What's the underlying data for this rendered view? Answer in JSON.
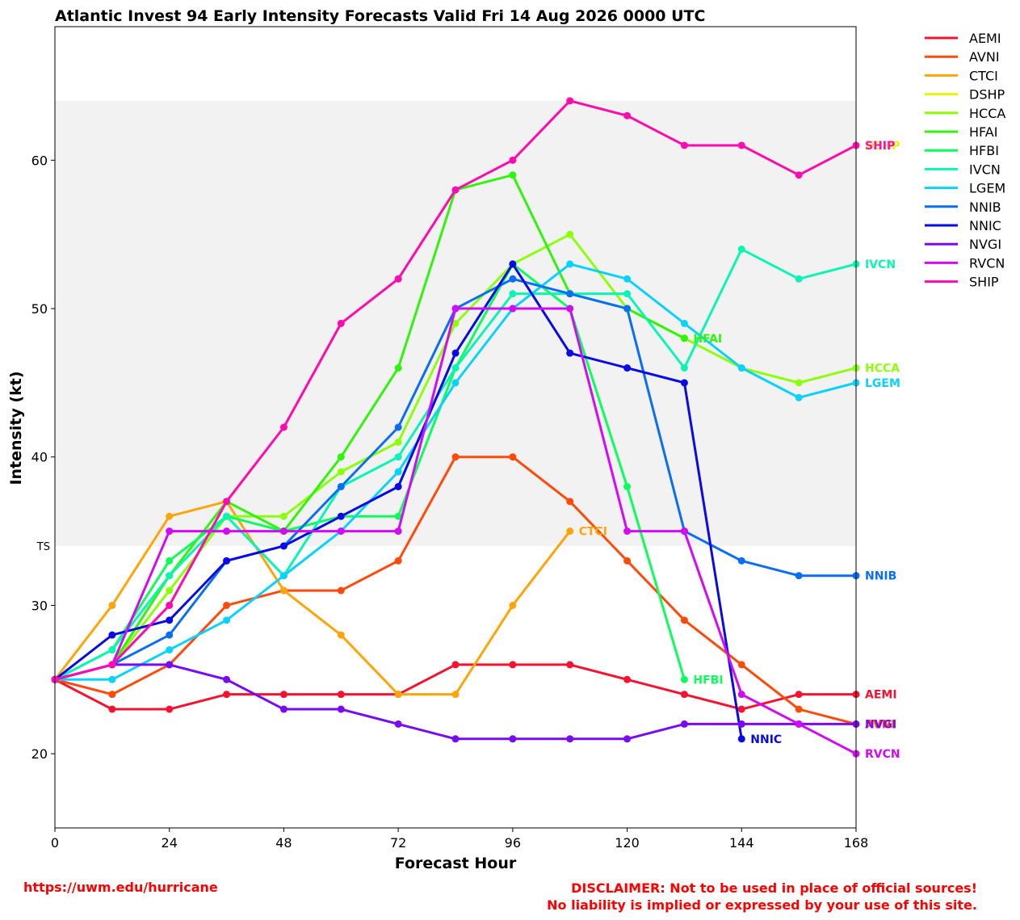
{
  "chart_data": {
    "type": "line",
    "title": "Atlantic Invest 94 Early Intensity Forecasts Valid Fri 14 Aug 2026 0000 UTC",
    "xlabel": "Forecast Hour",
    "ylabel": "Intensity (kt)",
    "xlim": [
      0,
      168
    ],
    "ylim": [
      15,
      69
    ],
    "xticks": [
      0,
      24,
      48,
      72,
      96,
      120,
      144,
      168
    ],
    "yticks": [
      20,
      30,
      40,
      50,
      60
    ],
    "band": {
      "label": "TS",
      "from": 34,
      "to": 64,
      "color": "#f2f2f2"
    },
    "legend_position": "outside-right",
    "series": [
      {
        "name": "AEMI",
        "color": "#f5132f",
        "end_label": "AEMI",
        "points": [
          [
            0,
            25
          ],
          [
            12,
            23
          ],
          [
            24,
            23
          ],
          [
            36,
            24
          ],
          [
            48,
            24
          ],
          [
            60,
            24
          ],
          [
            72,
            24
          ],
          [
            84,
            26
          ],
          [
            96,
            26
          ],
          [
            108,
            26
          ],
          [
            120,
            25
          ],
          [
            132,
            24
          ],
          [
            144,
            23
          ],
          [
            156,
            24
          ],
          [
            168,
            24
          ]
        ]
      },
      {
        "name": "AVNI",
        "color": "#ff4a0a",
        "end_label": "AVNI",
        "points": [
          [
            0,
            25
          ],
          [
            12,
            24
          ],
          [
            24,
            26
          ],
          [
            36,
            30
          ],
          [
            48,
            31
          ],
          [
            60,
            31
          ],
          [
            72,
            33
          ],
          [
            84,
            40
          ],
          [
            96,
            40
          ],
          [
            108,
            37
          ],
          [
            120,
            33
          ],
          [
            132,
            29
          ],
          [
            144,
            26
          ],
          [
            156,
            23
          ],
          [
            168,
            22
          ]
        ]
      },
      {
        "name": "CTCI",
        "color": "#ffa50a",
        "end_label": "CTCI",
        "points": [
          [
            0,
            25
          ],
          [
            12,
            30
          ],
          [
            24,
            36
          ],
          [
            36,
            37
          ],
          [
            48,
            31
          ],
          [
            60,
            28
          ],
          [
            72,
            24
          ],
          [
            84,
            24
          ],
          [
            96,
            30
          ],
          [
            108,
            35
          ]
        ]
      },
      {
        "name": "DSHP",
        "color": "#e6f50a",
        "end_label": "DSHP",
        "points": [
          [
            0,
            25
          ],
          [
            12,
            26
          ],
          [
            24,
            30
          ],
          [
            36,
            37
          ],
          [
            48,
            42
          ],
          [
            60,
            49
          ],
          [
            72,
            52
          ],
          [
            84,
            58
          ],
          [
            96,
            60
          ],
          [
            108,
            64
          ],
          [
            120,
            63
          ],
          [
            132,
            61
          ],
          [
            144,
            61
          ],
          [
            156,
            59
          ],
          [
            168,
            61
          ]
        ]
      },
      {
        "name": "HCCA",
        "color": "#8cff0a",
        "end_label": "HCCA",
        "points": [
          [
            0,
            25
          ],
          [
            12,
            26
          ],
          [
            24,
            31
          ],
          [
            36,
            36
          ],
          [
            48,
            36
          ],
          [
            60,
            39
          ],
          [
            72,
            41
          ],
          [
            84,
            49
          ],
          [
            96,
            53
          ],
          [
            108,
            55
          ],
          [
            120,
            50
          ],
          [
            132,
            48
          ],
          [
            144,
            46
          ],
          [
            156,
            45
          ],
          [
            168,
            46
          ]
        ]
      },
      {
        "name": "HFAI",
        "color": "#2ef50a",
        "end_label": "HFAI",
        "points": [
          [
            0,
            25
          ],
          [
            12,
            26
          ],
          [
            24,
            32
          ],
          [
            36,
            37
          ],
          [
            48,
            35
          ],
          [
            60,
            40
          ],
          [
            72,
            46
          ],
          [
            84,
            58
          ],
          [
            96,
            59
          ],
          [
            108,
            51
          ],
          [
            120,
            50
          ],
          [
            132,
            48
          ]
        ]
      },
      {
        "name": "HFBI",
        "color": "#0aff5a",
        "end_label": "HFBI",
        "points": [
          [
            0,
            25
          ],
          [
            12,
            27
          ],
          [
            24,
            33
          ],
          [
            36,
            36
          ],
          [
            48,
            35
          ],
          [
            60,
            36
          ],
          [
            72,
            36
          ],
          [
            84,
            46
          ],
          [
            96,
            53
          ],
          [
            108,
            50
          ],
          [
            120,
            38
          ],
          [
            132,
            25
          ]
        ]
      },
      {
        "name": "IVCN",
        "color": "#0af5b4",
        "end_label": "IVCN",
        "points": [
          [
            0,
            25
          ],
          [
            12,
            27
          ],
          [
            24,
            32
          ],
          [
            36,
            36
          ],
          [
            48,
            32
          ],
          [
            60,
            38
          ],
          [
            72,
            40
          ],
          [
            84,
            46
          ],
          [
            96,
            51
          ],
          [
            108,
            51
          ],
          [
            120,
            51
          ],
          [
            132,
            46
          ],
          [
            144,
            54
          ],
          [
            156,
            52
          ],
          [
            168,
            53
          ]
        ]
      },
      {
        "name": "LGEM",
        "color": "#0ad2ff",
        "end_label": "LGEM",
        "points": [
          [
            0,
            25
          ],
          [
            12,
            25
          ],
          [
            24,
            27
          ],
          [
            36,
            29
          ],
          [
            48,
            32
          ],
          [
            60,
            35
          ],
          [
            72,
            39
          ],
          [
            84,
            45
          ],
          [
            96,
            50
          ],
          [
            108,
            53
          ],
          [
            120,
            52
          ],
          [
            132,
            49
          ],
          [
            144,
            46
          ],
          [
            156,
            44
          ],
          [
            168,
            45
          ]
        ]
      },
      {
        "name": "NNIB",
        "color": "#0a6ef5",
        "end_label": "NNIB",
        "points": [
          [
            0,
            25
          ],
          [
            12,
            26
          ],
          [
            24,
            28
          ],
          [
            36,
            33
          ],
          [
            48,
            34
          ],
          [
            60,
            38
          ],
          [
            72,
            42
          ],
          [
            84,
            50
          ],
          [
            96,
            52
          ],
          [
            108,
            51
          ],
          [
            120,
            50
          ],
          [
            132,
            35
          ],
          [
            144,
            33
          ],
          [
            156,
            32
          ],
          [
            168,
            32
          ]
        ]
      },
      {
        "name": "NNIC",
        "color": "#0a0ae6",
        "end_label": "NNIC",
        "points": [
          [
            0,
            25
          ],
          [
            12,
            28
          ],
          [
            24,
            29
          ],
          [
            36,
            33
          ],
          [
            48,
            34
          ],
          [
            60,
            36
          ],
          [
            72,
            38
          ],
          [
            84,
            47
          ],
          [
            96,
            53
          ],
          [
            108,
            47
          ],
          [
            120,
            46
          ],
          [
            132,
            45
          ],
          [
            144,
            21
          ]
        ]
      },
      {
        "name": "NVGI",
        "color": "#780af5",
        "end_label": "NVGI",
        "points": [
          [
            0,
            25
          ],
          [
            12,
            26
          ],
          [
            24,
            26
          ],
          [
            36,
            25
          ],
          [
            48,
            23
          ],
          [
            60,
            23
          ],
          [
            72,
            22
          ],
          [
            84,
            21
          ],
          [
            96,
            21
          ],
          [
            108,
            21
          ],
          [
            120,
            21
          ],
          [
            132,
            22
          ],
          [
            144,
            22
          ],
          [
            156,
            22
          ],
          [
            168,
            22
          ]
        ]
      },
      {
        "name": "RVCN",
        "color": "#d20af5",
        "end_label": "RVCN",
        "points": [
          [
            0,
            25
          ],
          [
            12,
            26
          ],
          [
            24,
            35
          ],
          [
            36,
            35
          ],
          [
            48,
            35
          ],
          [
            60,
            35
          ],
          [
            72,
            35
          ],
          [
            84,
            50
          ],
          [
            96,
            50
          ],
          [
            108,
            50
          ],
          [
            120,
            35
          ],
          [
            132,
            35
          ],
          [
            144,
            24
          ],
          [
            156,
            22
          ],
          [
            168,
            20
          ]
        ]
      },
      {
        "name": "SHIP",
        "color": "#ff0ab4",
        "end_label": "SHIP",
        "points": [
          [
            0,
            25
          ],
          [
            12,
            26
          ],
          [
            24,
            30
          ],
          [
            36,
            37
          ],
          [
            48,
            42
          ],
          [
            60,
            49
          ],
          [
            72,
            52
          ],
          [
            84,
            58
          ],
          [
            96,
            60
          ],
          [
            108,
            64
          ],
          [
            120,
            63
          ],
          [
            132,
            61
          ],
          [
            144,
            61
          ],
          [
            156,
            59
          ],
          [
            168,
            61
          ]
        ]
      }
    ]
  },
  "footer": {
    "url": "https://uwm.edu/hurricane",
    "disclaimer_line1": "DISCLAIMER: Not to be used in place of official sources!",
    "disclaimer_line2": "No liability is implied or expressed by your use of this site."
  }
}
